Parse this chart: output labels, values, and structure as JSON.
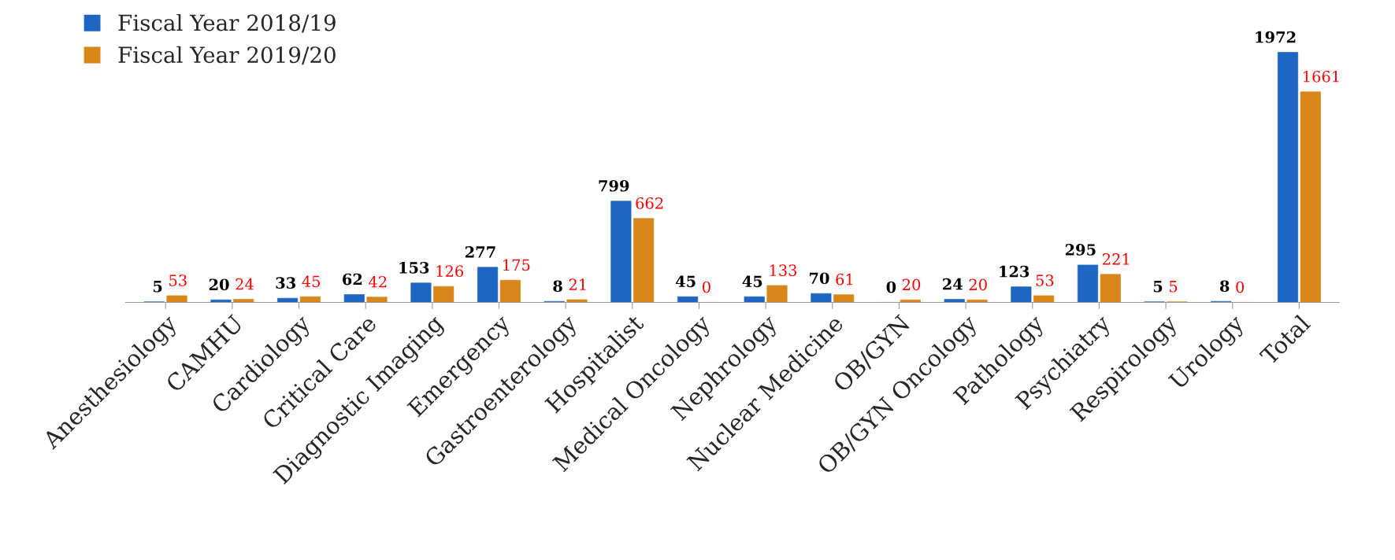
{
  "chart_data": {
    "type": "bar",
    "categories": [
      "Anesthesiology",
      "CAMHU",
      "Cardiology",
      "Critical Care",
      "Diagnostic Imaging",
      "Emergency",
      "Gastroenterology",
      "Hospitalist",
      "Medical Oncology",
      "Nephrology",
      "Nuclear Medicine",
      "OB/GYN",
      "OB/GYN Oncology",
      "Pathology",
      "Psychiatry",
      "Respirology",
      "Urology",
      "Total"
    ],
    "series": [
      {
        "name": "Fiscal Year 2018/19",
        "color": "#1f65c2",
        "values": [
          5,
          20,
          33,
          62,
          153,
          277,
          8,
          799,
          45,
          45,
          70,
          0,
          24,
          123,
          295,
          5,
          8,
          1972
        ]
      },
      {
        "name": "Fiscal Year 2019/20",
        "color": "#d9861a",
        "values": [
          53,
          24,
          45,
          42,
          126,
          175,
          21,
          662,
          0,
          133,
          61,
          20,
          20,
          53,
          221,
          5,
          0,
          1661
        ]
      }
    ],
    "data_labels": true,
    "legend": "top left",
    "grid": false
  }
}
